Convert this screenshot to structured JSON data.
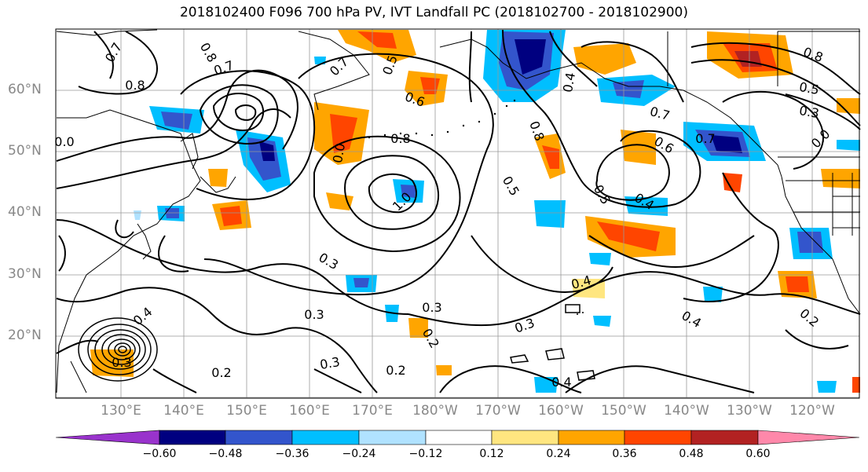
{
  "title": "2018102400 F096 700 hPa PV, IVT Landfall PC (2018102700 - 2018102900)",
  "lat_labels": [
    "60°N",
    "50°N",
    "40°N",
    "30°N",
    "20°N"
  ],
  "lon_labels": [
    "130°E",
    "140°E",
    "150°E",
    "160°E",
    "170°E",
    "180°W",
    "170°W",
    "160°W",
    "150°W",
    "140°W",
    "130°W",
    "120°W"
  ],
  "contour_labels": [
    "0.7",
    "0.8",
    "0.7",
    "0.8",
    "0.7",
    "0.5",
    "0.6",
    "0.4",
    "0.7",
    "0.8",
    "0.5",
    "0.3",
    "0.0",
    "0.8",
    "0.6",
    "0.7",
    "0.8",
    "0.5",
    "1.0",
    "0.5",
    "0.4",
    "0.3",
    "0.4",
    "0.3",
    "0.3",
    "0.2",
    "0.3",
    "0.4",
    "0.2",
    "0.3",
    "0.2",
    "0.4",
    "0.2",
    "0.4",
    "0.3",
    "0.0",
    "0.0"
  ],
  "colorbar": {
    "ticks": [
      "−0.60",
      "−0.48",
      "−0.36",
      "−0.24",
      "−0.12",
      "0.12",
      "0.24",
      "0.36",
      "0.48",
      "0.60"
    ],
    "colors": [
      "#9933cc",
      "#000080",
      "#3355cc",
      "#00bfff",
      "#b0e2ff",
      "#ffffff",
      "#ffe680",
      "#ffa500",
      "#ff4500",
      "#b22222",
      "#ff88aa"
    ]
  }
}
